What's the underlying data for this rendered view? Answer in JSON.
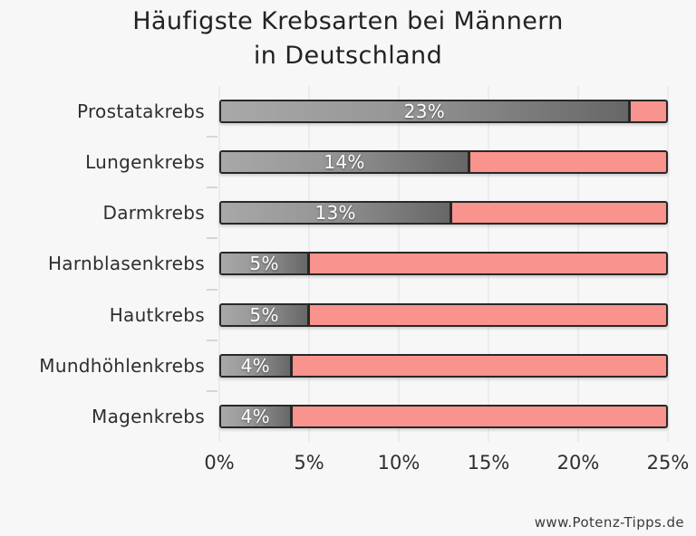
{
  "title": {
    "line1": "Häufigste Krebsarten bei Männern",
    "line2": "in Deutschland"
  },
  "footer": {
    "watermark": "www.Potenz-Tipps.de"
  },
  "chart_data": {
    "type": "bar",
    "orientation": "horizontal",
    "title": "Häufigste Krebsarten bei Männern in Deutschland",
    "categories": [
      "Prostatakrebs",
      "Lungenkrebs",
      "Darmkrebs",
      "Harnblasenkrebs",
      "Hautkrebs",
      "Mundhöhlenkrebs",
      "Magenkrebs"
    ],
    "values": [
      23,
      14,
      13,
      5,
      5,
      4,
      4
    ],
    "value_labels": [
      "23%",
      "14%",
      "13%",
      "5%",
      "5%",
      "4%",
      "4%"
    ],
    "unit": "%",
    "xlim": [
      0,
      25
    ],
    "x_ticks": [
      0,
      5,
      10,
      15,
      20,
      25
    ],
    "x_tick_labels": [
      "0%",
      "5%",
      "10%",
      "15%",
      "20%",
      "25%"
    ],
    "grid": true,
    "legend": false,
    "layout": {
      "legend_position": "none",
      "grid_lines": "vertical"
    },
    "colors": {
      "background": "#f7f7f7",
      "bar_fill_gradient_start": "#a8a8a8",
      "bar_fill_gradient_end": "#676767",
      "bar_remainder": "#f8938d",
      "bar_border": "#282828",
      "grid_line": "#e2e2e2",
      "value_label": "#ffffff",
      "text": "#2e2e2e",
      "title_text": "#222222"
    }
  }
}
